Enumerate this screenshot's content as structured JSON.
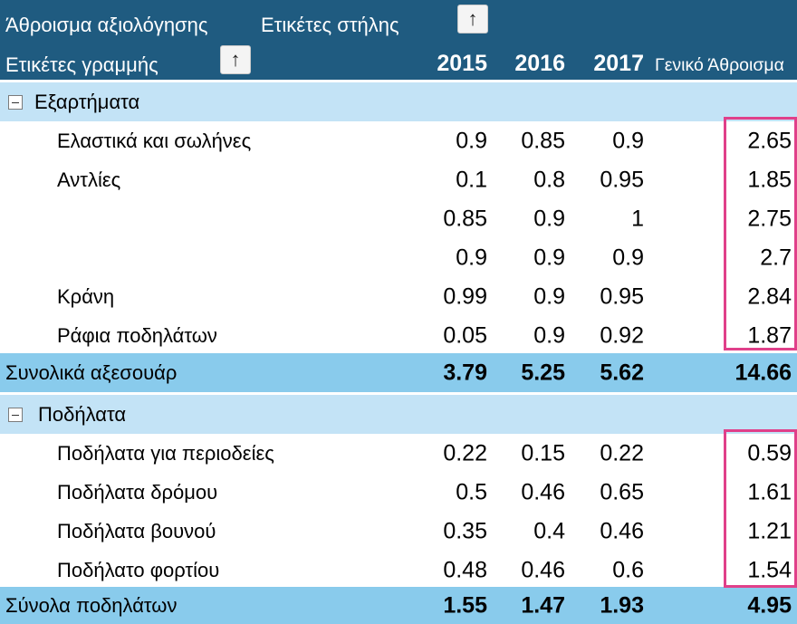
{
  "header": {
    "sum_label": "Άθροισμα αξιολόγησης",
    "col_labels": "Ετικέτες στήλης",
    "row_labels": "Ετικέτες γραμμής",
    "sort_glyph": "↑",
    "years": [
      "2015",
      "2016",
      "2017"
    ],
    "grand_total_label": "Γενικό Άθροισμα"
  },
  "groups": [
    {
      "name": "Εξαρτήματα",
      "rows": [
        {
          "label": "Ελαστικά και σωλήνες",
          "v": [
            "0.9",
            "0.85",
            "0.9",
            "2.65"
          ]
        },
        {
          "label": "Αντλίες",
          "v": [
            "0.1",
            "0.8",
            "0.95",
            "1.85"
          ]
        },
        {
          "label": "",
          "v": [
            "0.85",
            "0.9",
            "1",
            "2.75"
          ]
        },
        {
          "label": "",
          "v": [
            "0.9",
            "0.9",
            "0.9",
            "2.7"
          ]
        },
        {
          "label": "Κράνη",
          "v": [
            "0.99",
            "0.9",
            "0.95",
            "2.84"
          ]
        },
        {
          "label": "Ράφια ποδηλάτων",
          "v": [
            "0.05",
            "0.9",
            "0.92",
            "1.87"
          ]
        }
      ],
      "total": {
        "label": "Συνολικά αξεσουάρ",
        "v": [
          "3.79",
          "5.25",
          "5.62",
          "14.66"
        ]
      }
    },
    {
      "name": "Ποδήλατα",
      "rows": [
        {
          "label": "Ποδήλατα για περιοδείες",
          "v": [
            "0.22",
            "0.15",
            "0.22",
            "0.59"
          ]
        },
        {
          "label": "Ποδήλατα δρόμου",
          "v": [
            "0.5",
            "0.46",
            "0.65",
            "1.61"
          ]
        },
        {
          "label": "Ποδήλατα βουνού",
          "v": [
            "0.35",
            "0.4",
            "0.46",
            "1.21"
          ]
        },
        {
          "label": "Ποδήλατο φορτίου",
          "v": [
            "0.48",
            "0.46",
            "0.6",
            "1.54"
          ]
        }
      ],
      "total": {
        "label": "Σύνολα ποδηλάτων",
        "v": [
          "1.55",
          "1.47",
          "1.93",
          "4.95"
        ]
      }
    }
  ],
  "colors": {
    "header_bg": "#1f5b80",
    "group_bg": "#c3e3f6",
    "total_bg": "#89cbec",
    "highlight": "#e0408a"
  },
  "icons": {
    "collapse": "minus-box-icon",
    "sort": "arrow-up-icon"
  }
}
